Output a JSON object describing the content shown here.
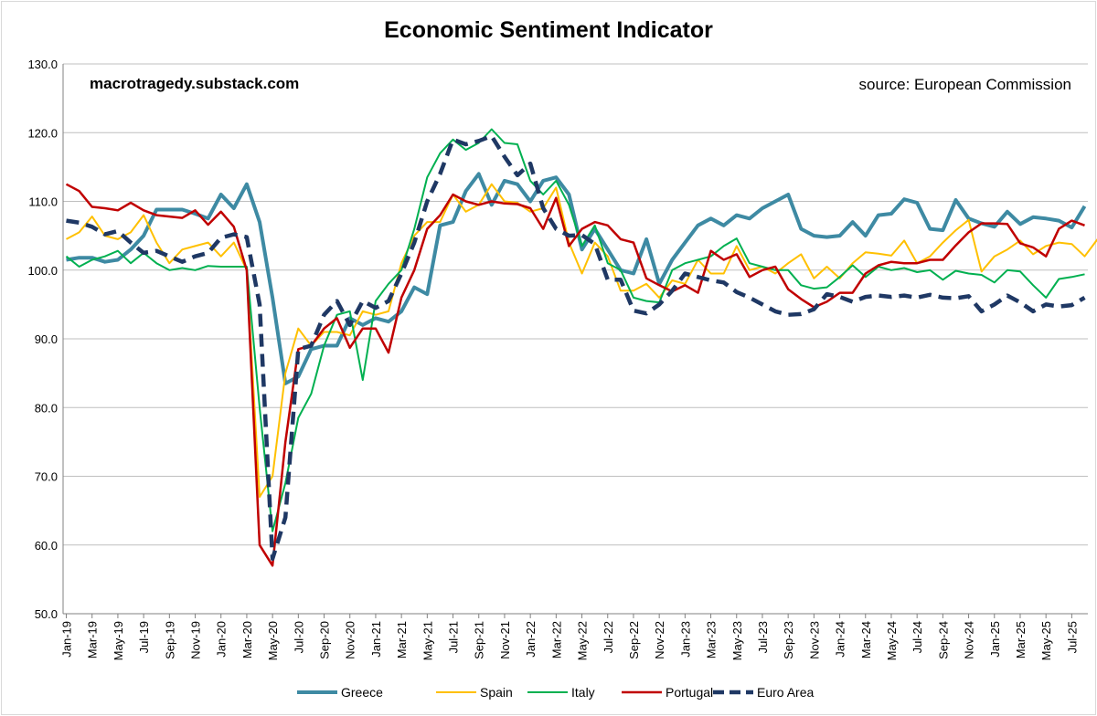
{
  "chart_data": {
    "type": "line",
    "title": "Economic Sentiment Indicator",
    "watermark": "macrotragedy.substack.com",
    "source_note": "source: European Commission",
    "xlabel": "",
    "ylabel": "",
    "ylim": [
      50,
      130
    ],
    "yticks": [
      50,
      60,
      70,
      80,
      90,
      100,
      110,
      120,
      130
    ],
    "ytick_labels": [
      "50.0",
      "60.0",
      "70.0",
      "80.0",
      "90.0",
      "100.0",
      "110.0",
      "120.0",
      "130.0"
    ],
    "grid": "horizontal",
    "legend_position": "bottom",
    "x_tick_labels": [
      "Jan-19",
      "Mar-19",
      "May-19",
      "Jul-19",
      "Sep-19",
      "Nov-19",
      "Jan-20",
      "Mar-20",
      "May-20",
      "Jul-20",
      "Sep-20",
      "Nov-20",
      "Jan-21",
      "Mar-21",
      "May-21",
      "Jul-21",
      "Sep-21",
      "Nov-21",
      "Jan-22",
      "Mar-22",
      "May-22",
      "Jul-22",
      "Sep-22",
      "Nov-22",
      "Jan-23",
      "Mar-23",
      "May-23",
      "Jul-23",
      "Sep-23",
      "Nov-23",
      "Jan-24",
      "Mar-24",
      "May-24",
      "Jul-24",
      "Sep-24",
      "Nov-24",
      "Jan-25",
      "Mar-25",
      "May-25",
      "Jul-25"
    ],
    "series": [
      {
        "name": "Greece",
        "color": "#3e8aa3",
        "width": 4,
        "dash": "",
        "values": [
          101.5,
          101.8,
          101.8,
          101.2,
          101.5,
          103,
          105,
          108.8,
          108.8,
          108.8,
          108.2,
          107.5,
          111,
          109,
          112.5,
          107,
          96,
          83.5,
          84.5,
          88.5,
          89,
          89,
          93,
          92,
          93,
          92.5,
          94,
          97.5,
          96.5,
          106.5,
          107,
          111.5,
          114,
          109.5,
          113,
          112.5,
          110,
          113,
          113.5,
          111,
          103,
          106,
          103,
          100,
          99.5,
          104.5,
          98,
          101.5,
          104,
          106.5,
          107.5,
          106.5,
          108,
          107.5,
          109,
          110,
          111,
          106,
          105,
          104.8,
          105,
          107,
          105,
          108,
          108.2,
          110.3,
          109.8,
          106,
          105.8,
          110.2,
          107.5,
          106.8,
          106.3,
          108.5,
          106.7,
          107.7,
          107.5,
          107.2,
          106.2,
          109.3
        ]
      },
      {
        "name": "Spain",
        "color": "#ffc000",
        "width": 2,
        "dash": "",
        "values": [
          104.5,
          105.5,
          107.8,
          105,
          104.5,
          105.5,
          108,
          104,
          101,
          103,
          103.5,
          104,
          102,
          104,
          100,
          67,
          70,
          85,
          91.5,
          89,
          91,
          91,
          90.5,
          94,
          93.5,
          94,
          101,
          105,
          107,
          107,
          111,
          108.5,
          109.5,
          112.5,
          110,
          109.8,
          108.5,
          109,
          112,
          104,
          99.5,
          104,
          102,
          97,
          97,
          98,
          96,
          98.5,
          98,
          101.5,
          99.5,
          99.5,
          103.5,
          100,
          100.5,
          99.5,
          101,
          102.3,
          98.8,
          100.5,
          98.8,
          101,
          102.6,
          102.4,
          102.1,
          104.3,
          101,
          102,
          104,
          105.8,
          107.3,
          99.8,
          102,
          103,
          104.3,
          102.3,
          103.5,
          104,
          103.8,
          102,
          104.5
        ]
      },
      {
        "name": "Italy",
        "color": "#00b050",
        "width": 2,
        "dash": "",
        "values": [
          102,
          100.5,
          101.5,
          102,
          102.8,
          101,
          102.5,
          101,
          100,
          100.3,
          100,
          100.6,
          100.5,
          100.5,
          100.5,
          80,
          62,
          69,
          78.5,
          82,
          89,
          93.5,
          94,
          84,
          95.5,
          98,
          100,
          106,
          113.5,
          117,
          119,
          117.5,
          118.5,
          120.5,
          118.5,
          118.3,
          113,
          111,
          113,
          109.5,
          103.5,
          106.5,
          101,
          100,
          96,
          95.5,
          95.3,
          100,
          101,
          101.5,
          102,
          103.5,
          104.6,
          101,
          100.5,
          100,
          100,
          97.8,
          97.3,
          97.5,
          99,
          100.7,
          99,
          100.5,
          100,
          100.3,
          99.7,
          100,
          98.6,
          99.9,
          99.5,
          99.3,
          98.2,
          100,
          99.8,
          97.8,
          96,
          98.7,
          99,
          99.4
        ]
      },
      {
        "name": "Portugal",
        "color": "#c00000",
        "width": 2.5,
        "dash": "",
        "values": [
          112.5,
          111.5,
          109.2,
          109,
          108.7,
          109.8,
          108.7,
          108,
          107.8,
          107.6,
          108.7,
          106.6,
          108.5,
          106.3,
          100,
          60,
          57,
          75,
          88.5,
          89,
          91.5,
          93,
          88.7,
          91.5,
          91.5,
          88,
          96,
          100,
          106,
          108,
          111,
          110,
          109.5,
          110,
          109.7,
          109.6,
          109,
          106,
          110.5,
          103.5,
          106,
          107,
          106.5,
          104.5,
          104,
          98.8,
          97.8,
          96.9,
          97.8,
          96.7,
          102.8,
          101.5,
          102.3,
          99,
          100,
          100.5,
          97.2,
          95.8,
          94.6,
          95.4,
          96.7,
          96.7,
          99.5,
          100.7,
          101.2,
          101,
          101,
          101.5,
          101.5,
          103.6,
          105.5,
          106.8,
          106.8,
          106.7,
          103.9,
          103.3,
          102,
          106,
          107.2,
          106.5
        ]
      },
      {
        "name": "Euro Area",
        "color": "#1f3864",
        "width": 4.5,
        "dash": "14,8",
        "values": [
          107.2,
          106.9,
          106.3,
          105.2,
          105.7,
          104,
          102.5,
          102.8,
          102,
          101.2,
          102,
          102.5,
          104.7,
          105.2,
          104.8,
          95,
          58,
          64,
          88.5,
          89,
          93.5,
          95.5,
          92,
          95.5,
          94.5,
          95.5,
          99.5,
          104,
          110,
          114,
          119,
          118.3,
          118.8,
          119.5,
          116.5,
          113.8,
          115.5,
          109,
          106,
          105,
          105.1,
          103.8,
          98.6,
          98.6,
          94.1,
          93.7,
          95,
          97,
          99.5,
          99,
          98.5,
          98.2,
          96.8,
          96,
          95,
          94,
          93.5,
          93.6,
          94.3,
          96.5,
          96.1,
          95.4,
          96.1,
          96.3,
          96.1,
          96.3,
          96,
          96.4,
          96,
          95.9,
          96.2,
          94,
          95,
          96.3,
          95.3,
          94,
          95,
          94.7,
          94.9,
          96
        ]
      }
    ]
  }
}
